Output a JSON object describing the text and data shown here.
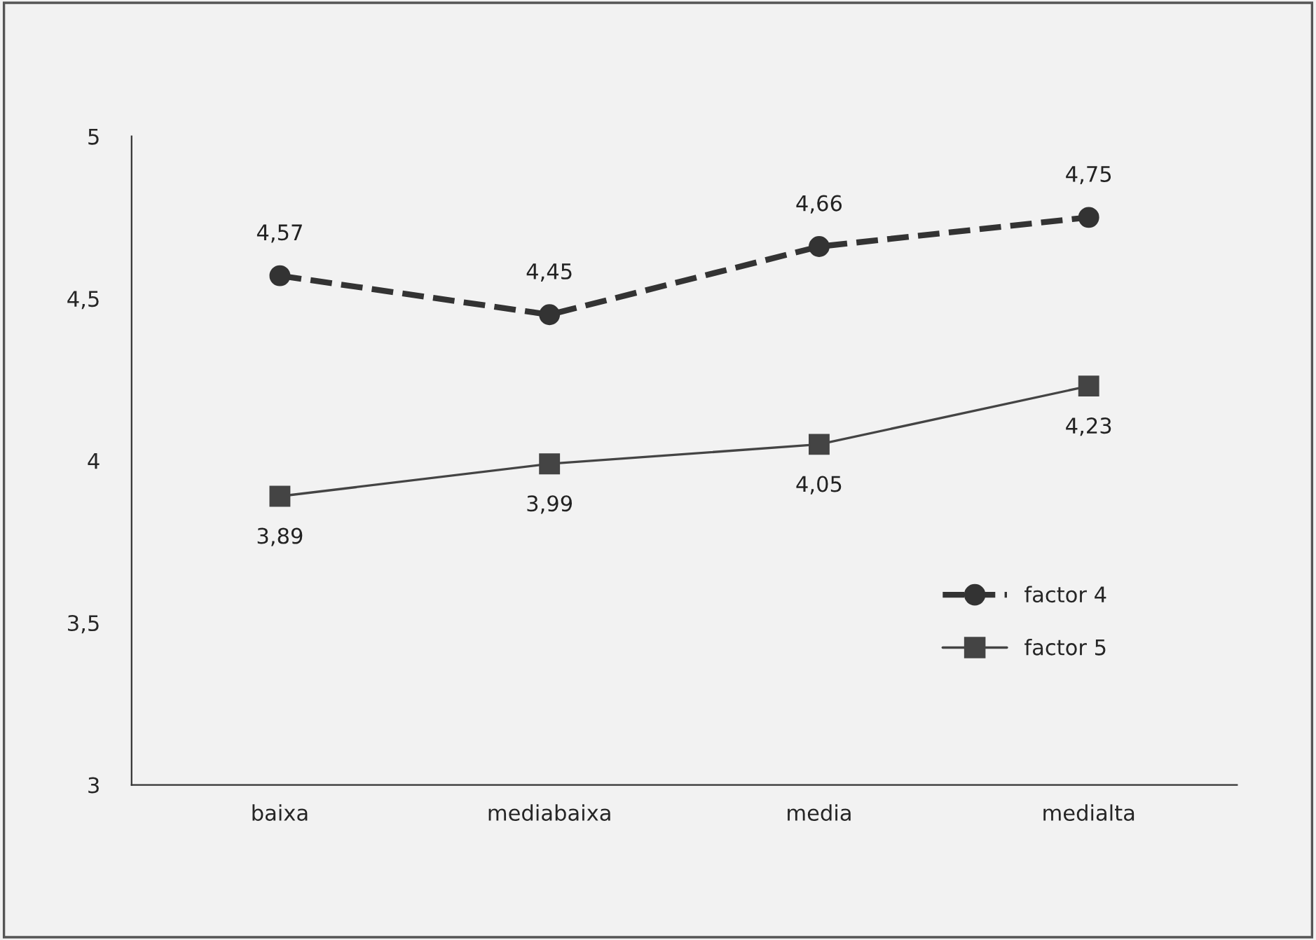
{
  "chart_data": {
    "type": "line",
    "categories": [
      "baixa",
      "mediabaixa",
      "media",
      "medialta"
    ],
    "series": [
      {
        "name": "factor 4",
        "color": "#333333",
        "values": [
          4.57,
          4.45,
          4.66,
          4.75
        ],
        "value_labels": [
          "4,57",
          "4,45",
          "4,66",
          "4,75"
        ],
        "marker": "circle",
        "line_style": "dashed"
      },
      {
        "name": "factor 5",
        "color": "#444444",
        "values": [
          3.89,
          3.99,
          4.05,
          4.23
        ],
        "value_labels": [
          "3,89",
          "3,99",
          "4,05",
          "4,23"
        ],
        "marker": "square",
        "line_style": "solid"
      }
    ],
    "ylim": [
      3,
      5
    ],
    "yticks": [
      3,
      {
        "value": 3.5,
        "label": "3,5"
      },
      4,
      {
        "value": 4.5,
        "label": "4,5"
      },
      5
    ],
    "grid": false,
    "legend": "right"
  }
}
